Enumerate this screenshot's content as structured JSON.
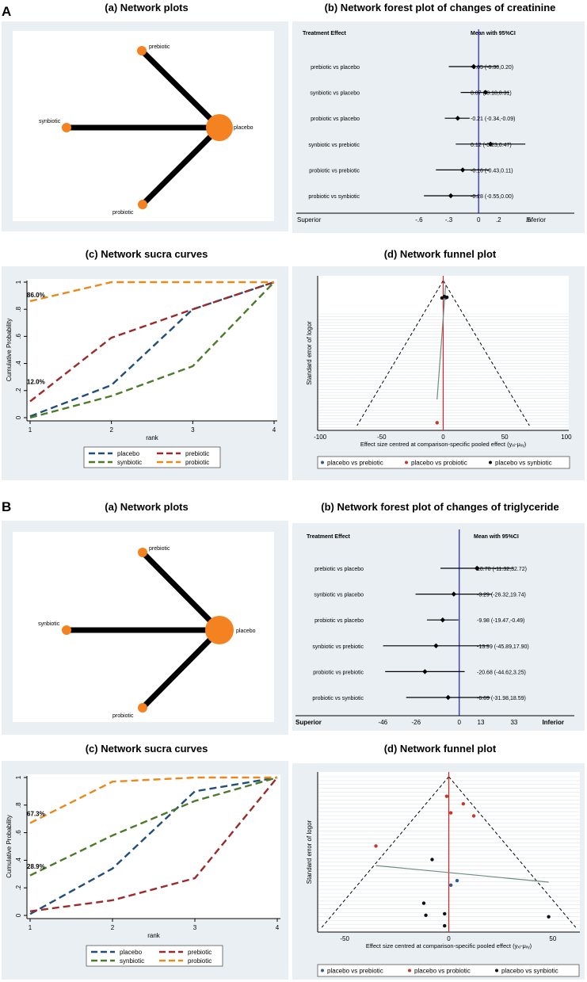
{
  "sections": [
    {
      "letter": "A",
      "titles": {
        "network": "(a) Network plots",
        "forest": "(b) Network forest plot of changes of creatinine",
        "sucra": "(c) Network sucra curves",
        "funnel": "(d) Network funnel plot"
      }
    },
    {
      "letter": "B",
      "titles": {
        "network": "(a) Network plots",
        "forest": "(b) Network forest plot of changes of triglyceride",
        "sucra": "(c) Network sucra curves",
        "funnel": "(d) Network funnel plot"
      }
    }
  ],
  "colors": {
    "background": "#e9eff2",
    "node": "#f58220",
    "placebo": "#1f4e79",
    "prebiotic": "#9b2b2b",
    "synbiotic": "#4b7a29",
    "probiotic": "#e8891a",
    "funnel_prebiotic": "#2e5b9a",
    "funnel_probiotic": "#c0392b",
    "funnel_synbiotic": "#111111",
    "null_line": "#1a1ae6",
    "funnel_center": "#e02020"
  },
  "chart_data": [
    {
      "type": "network",
      "nodes": [
        {
          "name": "prebiotic",
          "size": "small"
        },
        {
          "name": "synbiotic",
          "size": "small"
        },
        {
          "name": "placebo",
          "size": "large"
        },
        {
          "name": "probiotic",
          "size": "small"
        }
      ],
      "edges": [
        [
          "prebiotic",
          "placebo"
        ],
        [
          "synbiotic",
          "placebo"
        ],
        [
          "probiotic",
          "placebo"
        ]
      ]
    },
    {
      "type": "forest",
      "header_left": "Treatment Effect",
      "header_right": "Mean with 95%CI",
      "rows": [
        {
          "label": "prebiotic vs placebo",
          "mean": -0.05,
          "lo": -0.3,
          "hi": 0.2,
          "text": "-0.05 (-0.30,0.20)"
        },
        {
          "label": "synbiotic vs placebo",
          "mean": 0.07,
          "lo": -0.18,
          "hi": 0.31,
          "text": "0.07 (-0.18,0.31)"
        },
        {
          "label": "probiotic vs placebo",
          "mean": -0.21,
          "lo": -0.34,
          "hi": -0.09,
          "text": "-0.21 (-0.34,-0.09)"
        },
        {
          "label": "synbiotic vs prebiotic",
          "mean": 0.12,
          "lo": -0.23,
          "hi": 0.47,
          "text": "0.12 (-0.23,0.47)"
        },
        {
          "label": "probiotic vs prebiotic",
          "mean": -0.16,
          "lo": -0.43,
          "hi": 0.11,
          "text": "-0.16 (-0.43,0.11)"
        },
        {
          "label": "probiotic vs synbiotic",
          "mean": -0.28,
          "lo": -0.55,
          "hi": 0.0,
          "text": "-0.28 (-0.55,0.00)"
        }
      ],
      "ticks": [
        -0.6,
        -0.3,
        0,
        0.2,
        0.5
      ],
      "tick_labels": [
        "-.6",
        "-.3",
        "0",
        ".2",
        ".5"
      ],
      "xlim": [
        -0.87,
        0.66
      ],
      "left_label": "Superior",
      "right_label": "Inferior"
    },
    {
      "type": "line",
      "x": [
        1,
        2,
        3,
        4
      ],
      "xlabel": "rank",
      "ylabel": "Cumulative Probability",
      "ylim": [
        0,
        1
      ],
      "yticks": [
        0,
        0.2,
        0.4,
        0.6,
        0.8,
        1
      ],
      "ytick_labels": [
        "0",
        ".2",
        ".4",
        ".6",
        ".8",
        "1"
      ],
      "series": [
        {
          "name": "placebo",
          "values": [
            0.01,
            0.24,
            0.8,
            1.0
          ]
        },
        {
          "name": "prebiotic",
          "values": [
            0.12,
            0.59,
            0.8,
            1.0
          ]
        },
        {
          "name": "synbiotic",
          "values": [
            0.0,
            0.16,
            0.38,
            1.0
          ]
        },
        {
          "name": "probiotic",
          "values": [
            0.86,
            1.0,
            1.0,
            1.0
          ]
        }
      ],
      "annotations": [
        {
          "text": "86.0%",
          "x": 1,
          "y": 0.89
        },
        {
          "text": "12.0%",
          "x": 1,
          "y": 0.25
        }
      ]
    },
    {
      "type": "scatter",
      "xlabel": "Effect size centred at comparison-specific pooled effect (yₓᵢ-μₓᵧ)",
      "ylabel": "Standard error of logor",
      "xlim": [
        -102,
        102
      ],
      "xticks": [
        -100,
        -50,
        0,
        50,
        100
      ],
      "tick_labels": [
        "-100",
        "-50",
        "0",
        "50",
        "100"
      ],
      "funnel_apex_x": 0,
      "funnel_base_x": [
        -70,
        70
      ],
      "points": [
        {
          "group": "placebo vs prebiotic",
          "x": 2,
          "y": 0.88
        },
        {
          "group": "placebo vs probiotic",
          "x": -5,
          "y": 0.02
        },
        {
          "group": "placebo vs synbiotic",
          "x": 1,
          "y": 0.89
        },
        {
          "group": "placebo vs synbiotic",
          "x": -1,
          "y": 0.88
        },
        {
          "group": "placebo vs synbiotic",
          "x": 3,
          "y": 0.885
        }
      ],
      "regression": [
        [
          -5,
          0.18
        ],
        [
          2,
          0.97
        ]
      ],
      "legend": [
        "placebo vs prebiotic",
        "placebo vs probiotic",
        "placebo vs synbiotic"
      ]
    },
    {
      "type": "network",
      "nodes": [
        {
          "name": "prebiotic",
          "size": "small"
        },
        {
          "name": "synbiotic",
          "size": "small"
        },
        {
          "name": "placebo",
          "size": "large"
        },
        {
          "name": "probiotic",
          "size": "small"
        }
      ],
      "edges": [
        [
          "prebiotic",
          "placebo"
        ],
        [
          "synbiotic",
          "placebo"
        ],
        [
          "probiotic",
          "placebo"
        ]
      ]
    },
    {
      "type": "forest",
      "header_left": "Treatment Effect",
      "header_right": "Mean with 95%CI",
      "rows": [
        {
          "label": "prebiotic vs placebo",
          "mean": 10.7,
          "lo": -11.32,
          "hi": 32.72,
          "text": "10.70 (-11.32,32.72)"
        },
        {
          "label": "synbiotic vs placebo",
          "mean": -3.29,
          "lo": -26.32,
          "hi": 19.74,
          "text": "-3.29 (-26.32,19.74)"
        },
        {
          "label": "probiotic vs placebo",
          "mean": -9.98,
          "lo": -19.47,
          "hi": -0.49,
          "text": "-9.98 (-19.47,-0.49)"
        },
        {
          "label": "synbiotic vs prebiotic",
          "mean": -13.99,
          "lo": -45.89,
          "hi": 17.9,
          "text": "-13.99 (-45.89,17.90)"
        },
        {
          "label": "probiotic vs prebiotic",
          "mean": -20.68,
          "lo": -44.62,
          "hi": 3.25,
          "text": "-20.68 (-44.62,3.25)"
        },
        {
          "label": "probiotic vs synbiotic",
          "mean": -6.69,
          "lo": -31.98,
          "hi": 18.59,
          "text": "-6.69 (-31.98,18.59)"
        }
      ],
      "ticks": [
        -46,
        -26,
        0,
        13,
        33
      ],
      "tick_labels": [
        "-46",
        "-26",
        "0",
        "13",
        "33"
      ],
      "xlim": [
        -60,
        55
      ],
      "left_label": "Superior",
      "right_label": "Inferior"
    },
    {
      "type": "line",
      "x": [
        1,
        2,
        3,
        4
      ],
      "xlabel": "rank",
      "ylabel": "Cumulative Probability",
      "ylim": [
        0,
        1
      ],
      "yticks": [
        0,
        0.2,
        0.4,
        0.6,
        0.8,
        1
      ],
      "ytick_labels": [
        "0",
        ".2",
        ".4",
        ".6",
        ".8",
        "1"
      ],
      "series": [
        {
          "name": "placebo",
          "values": [
            0.01,
            0.34,
            0.9,
            1.0
          ]
        },
        {
          "name": "prebiotic",
          "values": [
            0.03,
            0.11,
            0.27,
            1.0
          ]
        },
        {
          "name": "synbiotic",
          "values": [
            0.29,
            0.58,
            0.83,
            1.0
          ]
        },
        {
          "name": "probiotic",
          "values": [
            0.67,
            0.97,
            1.0,
            1.0
          ]
        }
      ],
      "annotations": [
        {
          "text": "67.3%",
          "x": 1,
          "y": 0.72
        },
        {
          "text": "28.9%",
          "x": 1,
          "y": 0.34
        }
      ]
    },
    {
      "type": "scatter",
      "xlabel": "Effect size centred at comparison-specific pooled effect (yₓᵢ-μₓᵧ)",
      "ylabel": "Standard error of logor",
      "xlim": [
        -63,
        63
      ],
      "xticks": [
        -50,
        0,
        50
      ],
      "tick_labels": [
        "-50",
        "0",
        "50"
      ],
      "funnel_apex_x": 0,
      "funnel_base_x": [
        -61,
        61
      ],
      "points": [
        {
          "group": "placebo vs prebiotic",
          "x": 4,
          "y": 0.31
        },
        {
          "group": "placebo vs prebiotic",
          "x": 1,
          "y": 0.28
        },
        {
          "group": "placebo vs probiotic",
          "x": -1,
          "y": 0.87
        },
        {
          "group": "placebo vs probiotic",
          "x": 7,
          "y": 0.82
        },
        {
          "group": "placebo vs probiotic",
          "x": 1,
          "y": 0.76
        },
        {
          "group": "placebo vs probiotic",
          "x": 12,
          "y": 0.74
        },
        {
          "group": "placebo vs probiotic",
          "x": -35,
          "y": 0.54
        },
        {
          "group": "placebo vs synbiotic",
          "x": -8,
          "y": 0.45
        },
        {
          "group": "placebo vs synbiotic",
          "x": -12,
          "y": 0.16
        },
        {
          "group": "placebo vs synbiotic",
          "x": -2,
          "y": 0.01
        },
        {
          "group": "placebo vs synbiotic",
          "x": 48,
          "y": 0.07
        },
        {
          "group": "placebo vs synbiotic",
          "x": -11,
          "y": 0.08
        },
        {
          "group": "placebo vs synbiotic",
          "x": -2,
          "y": 0.09
        }
      ],
      "regression": [
        [
          -35,
          0.41
        ],
        [
          48,
          0.3
        ]
      ],
      "legend": [
        "placebo vs prebiotic",
        "placebo vs probiotic",
        "placebo vs synbiotic"
      ]
    }
  ]
}
